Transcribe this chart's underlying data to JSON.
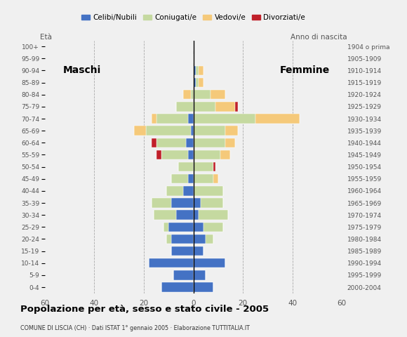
{
  "age_groups": [
    "0-4",
    "5-9",
    "10-14",
    "15-19",
    "20-24",
    "25-29",
    "30-34",
    "35-39",
    "40-44",
    "45-49",
    "50-54",
    "55-59",
    "60-64",
    "65-69",
    "70-74",
    "75-79",
    "80-84",
    "85-89",
    "90-94",
    "95-99",
    "100+"
  ],
  "birth_years": [
    "2000-2004",
    "1995-1999",
    "1990-1994",
    "1985-1989",
    "1980-1984",
    "1975-1979",
    "1970-1974",
    "1965-1969",
    "1960-1964",
    "1955-1959",
    "1950-1954",
    "1945-1949",
    "1940-1944",
    "1935-1939",
    "1930-1934",
    "1925-1929",
    "1920-1924",
    "1915-1919",
    "1910-1914",
    "1905-1909",
    "1904 o prima"
  ],
  "males": {
    "celibe": [
      13,
      8,
      18,
      9,
      9,
      10,
      7,
      9,
      4,
      2,
      0,
      2,
      3,
      1,
      2,
      0,
      0,
      0,
      0,
      0,
      0
    ],
    "coniugato": [
      0,
      0,
      0,
      0,
      2,
      2,
      9,
      8,
      7,
      7,
      6,
      11,
      12,
      18,
      13,
      7,
      1,
      0,
      0,
      0,
      0
    ],
    "vedovo": [
      0,
      0,
      0,
      0,
      0,
      0,
      0,
      0,
      0,
      0,
      0,
      0,
      0,
      5,
      2,
      0,
      3,
      0,
      0,
      0,
      0
    ],
    "divorziato": [
      0,
      0,
      0,
      0,
      0,
      0,
      0,
      0,
      0,
      0,
      0,
      2,
      2,
      0,
      0,
      0,
      0,
      0,
      0,
      0,
      0
    ]
  },
  "females": {
    "celibe": [
      8,
      5,
      13,
      4,
      5,
      4,
      2,
      3,
      0,
      0,
      0,
      0,
      0,
      0,
      0,
      0,
      0,
      1,
      1,
      0,
      0
    ],
    "coniugato": [
      0,
      0,
      0,
      0,
      3,
      8,
      12,
      9,
      12,
      8,
      8,
      11,
      13,
      13,
      25,
      9,
      7,
      1,
      1,
      0,
      0
    ],
    "vedovo": [
      0,
      0,
      0,
      0,
      0,
      0,
      0,
      0,
      0,
      2,
      0,
      4,
      4,
      5,
      18,
      8,
      6,
      2,
      2,
      0,
      0
    ],
    "divorziato": [
      0,
      0,
      0,
      0,
      0,
      0,
      0,
      0,
      0,
      0,
      1,
      0,
      0,
      0,
      0,
      1,
      0,
      0,
      0,
      0,
      0
    ]
  },
  "colors": {
    "celibe": "#4472c4",
    "coniugato": "#c5d9a0",
    "vedovo": "#f5c97a",
    "divorziato": "#c0202a"
  },
  "xlim": 60,
  "title": "Popolazione per età, sesso e stato civile - 2005",
  "subtitle": "COMUNE DI LISCIA (CH) · Dati ISTAT 1° gennaio 2005 · Elaborazione TUTTITALIA.IT",
  "legend_labels": [
    "Celibi/Nubili",
    "Coniugati/e",
    "Vedovi/e",
    "Divorziati/e"
  ],
  "xlabel_left": "Maschi",
  "xlabel_right": "Femmine",
  "ylabel_left": "Età",
  "ylabel_right": "Anno di nascita",
  "background_color": "#f0f0f0"
}
